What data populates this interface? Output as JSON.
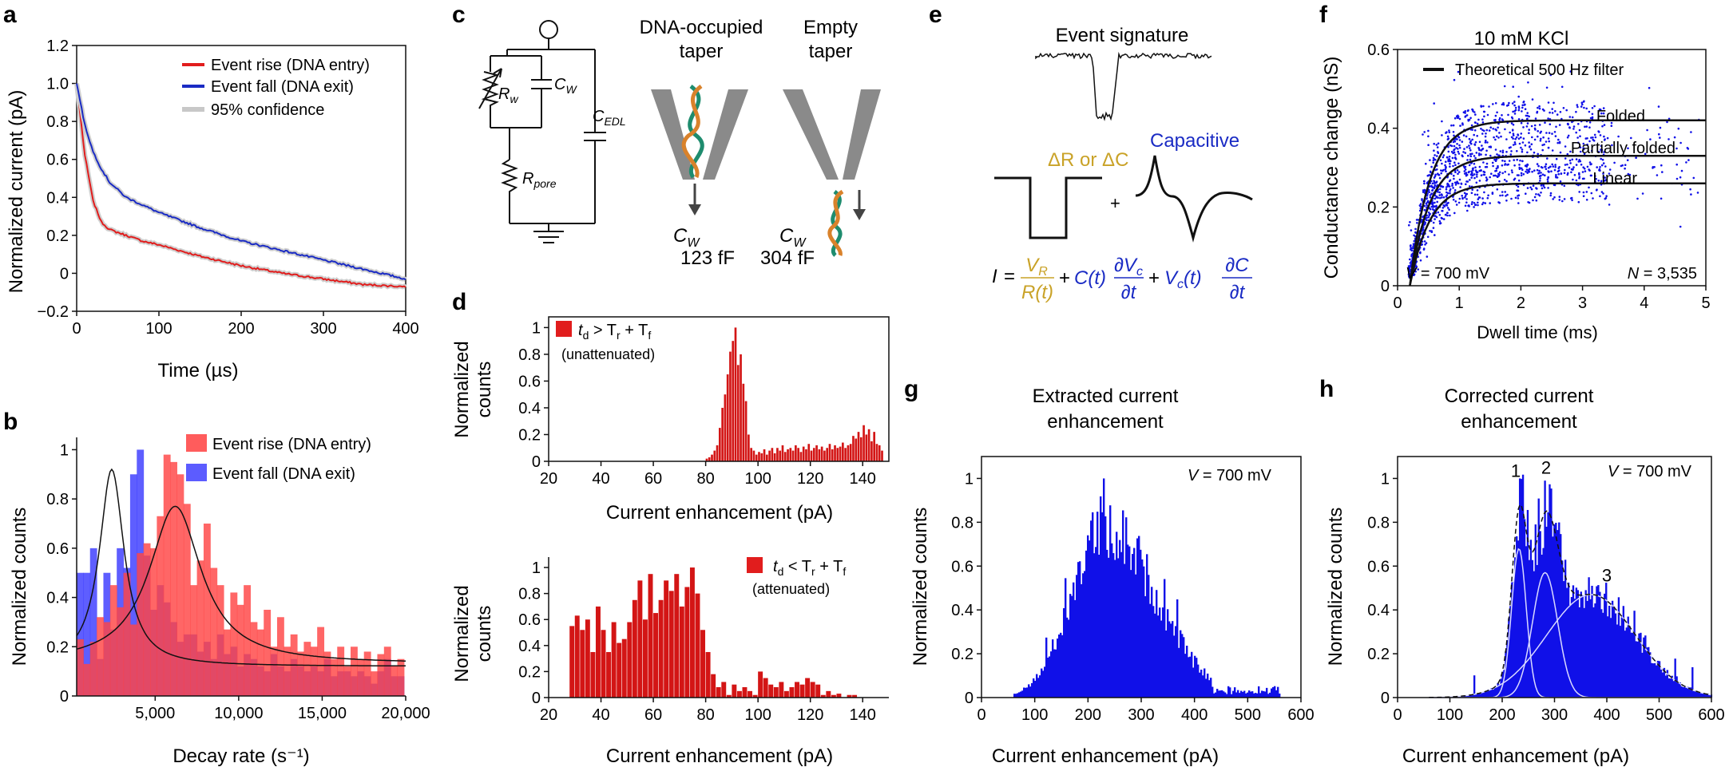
{
  "colors": {
    "red": "#e11d1d",
    "blue": "#1a2bc4",
    "hist_blue": "#1010e8",
    "hist_red": "#d31515",
    "gold": "#c9a227",
    "grey": "#8c8c8c",
    "overlap": "#b0154f"
  },
  "panels": {
    "a": {
      "letter": "a",
      "legend": [
        "Event rise (DNA entry)",
        "Event fall (DNA exit)",
        "95% confidence"
      ],
      "chart_data": {
        "type": "line",
        "xlabel": "Time (µs)",
        "ylabel": "Normalized current (pA)",
        "xlim": [
          0,
          400
        ],
        "ylim": [
          -0.2,
          1.2
        ],
        "xticks": [
          0,
          100,
          200,
          300,
          400
        ],
        "yticks": [
          -0.2,
          0,
          0.2,
          0.4,
          0.6,
          0.8,
          1.0,
          1.2
        ],
        "ytick_labels": [
          "−0.2",
          "0",
          "0.2",
          "0.4",
          "0.6",
          "0.8",
          "1.0",
          "1.2"
        ],
        "series": [
          {
            "name": "Event rise (DNA entry)",
            "x": [
              0,
              10,
              20,
              30,
              40,
              60,
              80,
              100,
              150,
              200,
              250,
              300,
              350,
              400
            ],
            "y": [
              1.0,
              0.62,
              0.38,
              0.27,
              0.23,
              0.2,
              0.17,
              0.15,
              0.09,
              0.04,
              0.0,
              -0.03,
              -0.06,
              -0.07
            ]
          },
          {
            "name": "Event fall (DNA exit)",
            "x": [
              0,
              10,
              20,
              30,
              40,
              60,
              80,
              100,
              150,
              200,
              250,
              300,
              350,
              400
            ],
            "y": [
              1.0,
              0.78,
              0.64,
              0.55,
              0.48,
              0.4,
              0.36,
              0.32,
              0.24,
              0.17,
              0.12,
              0.07,
              0.02,
              -0.03
            ]
          }
        ]
      }
    },
    "b": {
      "letter": "b",
      "legend": [
        "Event rise (DNA entry)",
        "Event fall (DNA exit)"
      ],
      "chart_data": {
        "type": "bar",
        "xlabel": "Decay rate (s⁻¹)",
        "ylabel": "Normalized counts",
        "xlim": [
          300,
          20000
        ],
        "ylim": [
          0,
          1.05
        ],
        "xticks": [
          5000,
          10000,
          15000,
          20000
        ],
        "xtick_labels": [
          "5,000",
          "10,000",
          "15,000",
          "20,000"
        ],
        "yticks": [
          0,
          0.2,
          0.4,
          0.6,
          0.8,
          1.0
        ],
        "bin_start": 300,
        "bin_width": 400,
        "series": [
          {
            "name": "Event rise (DNA entry)",
            "values": [
              0.23,
              0.13,
              0.22,
              0.32,
              0.3,
              0.45,
              0.36,
              0.5,
              0.29,
              0.58,
              0.62,
              0.6,
              0.73,
              0.98,
              0.95,
              0.9,
              0.78,
              0.45,
              0.55,
              0.7,
              0.52,
              0.45,
              0.27,
              0.42,
              0.37,
              0.45,
              0.3,
              0.27,
              0.35,
              0.2,
              0.32,
              0.2,
              0.25,
              0.18,
              0.22,
              0.2,
              0.28,
              0.18,
              0.15,
              0.2,
              0.12,
              0.2,
              0.15,
              0.18,
              0.1,
              0.17,
              0.2,
              0.12,
              0.15
            ]
          },
          {
            "name": "Event fall (DNA exit)",
            "values": [
              0.5,
              0.5,
              0.6,
              0.15,
              0.5,
              0.27,
              0.6,
              0.52,
              0.9,
              1.0,
              0.57,
              0.35,
              0.45,
              0.38,
              0.3,
              0.22,
              0.25,
              0.25,
              0.18,
              0.22,
              0.15,
              0.25,
              0.17,
              0.2,
              0.12,
              0.17,
              0.15,
              0.12,
              0.1,
              0.17,
              0.12,
              0.1,
              0.15,
              0.12,
              0.1,
              0.12,
              0.1,
              0.15,
              0.08,
              0.1,
              0.1,
              0.08,
              0.1,
              0.08,
              0.05,
              0.1,
              0.15,
              0.08,
              0.08
            ]
          }
        ],
        "fits": [
          {
            "name": "rise fit",
            "x0": 6200,
            "peak": 0.77,
            "width": 1900,
            "base": 0.13
          },
          {
            "name": "fall fit",
            "x0": 2400,
            "peak": 0.92,
            "width": 900,
            "base": 0.12
          }
        ]
      }
    },
    "c": {
      "letter": "c",
      "circuit_labels": {
        "rw": "R",
        "rw_sub": "w",
        "cw": "C",
        "cw_sub": "W",
        "cedl": "C",
        "cedl_sub": "EDL",
        "rpore": "R",
        "rpore_sub": "pore"
      },
      "occupied": {
        "title_1": "DNA-occupied",
        "title_2": "taper",
        "cap_label": "C",
        "cap_sub": "W",
        "cap_value": "123 fF"
      },
      "empty": {
        "title_1": "Empty",
        "title_2": "taper",
        "cap_label": "C",
        "cap_sub": "W",
        "cap_value": "304 fF"
      }
    },
    "d": {
      "letter": "d",
      "top": {
        "legend_main": "t",
        "legend_sub": "d",
        "legend_rel": " > T",
        "legend_r": "r",
        "legend_plus": " + T",
        "legend_f": "f",
        "legend_note": "(unattenuated)",
        "chart_data": {
          "type": "bar",
          "xlabel": "Current enhancement (pA)",
          "ylabel_1": "Normalized",
          "ylabel_2": "counts",
          "xlim": [
            20,
            150
          ],
          "ylim": [
            0,
            1.08
          ],
          "xticks": [
            20,
            40,
            60,
            80,
            100,
            120,
            140
          ],
          "yticks": [
            0,
            0.2,
            0.4,
            0.6,
            0.8,
            1.0
          ],
          "bin_start": 80,
          "bin_width": 1,
          "values": [
            0.02,
            0.03,
            0.05,
            0.08,
            0.12,
            0.25,
            0.4,
            0.5,
            0.65,
            0.82,
            0.9,
            1.0,
            0.72,
            0.8,
            0.58,
            0.45,
            0.2,
            0.1,
            0.08,
            0.05,
            0.07,
            0.06,
            0.09,
            0.05,
            0.08,
            0.1,
            0.06,
            0.1,
            0.08,
            0.12,
            0.07,
            0.09,
            0.1,
            0.08,
            0.12,
            0.1,
            0.07,
            0.11,
            0.09,
            0.13,
            0.08,
            0.1,
            0.12,
            0.09,
            0.11,
            0.08,
            0.1,
            0.13,
            0.09,
            0.12,
            0.1,
            0.11,
            0.14,
            0.1,
            0.12,
            0.13,
            0.19,
            0.17,
            0.22,
            0.18,
            0.27,
            0.2,
            0.24,
            0.15,
            0.22,
            0.13,
            0.12,
            0.08
          ]
        }
      },
      "bottom": {
        "legend_main": "t",
        "legend_sub": "d",
        "legend_rel": " < T",
        "legend_r": "r",
        "legend_plus": " + T",
        "legend_f": "f",
        "legend_note": "(attenuated)",
        "chart_data": {
          "type": "bar",
          "xlabel": "Current enhancement (pA)",
          "ylabel_1": "Normalized",
          "ylabel_2": "counts",
          "xlim": [
            20,
            150
          ],
          "ylim": [
            0,
            1.08
          ],
          "xticks": [
            20,
            40,
            60,
            80,
            100,
            120,
            140
          ],
          "yticks": [
            0,
            0.2,
            0.4,
            0.6,
            0.8,
            1.0
          ],
          "bin_start": 28,
          "bin_width": 2,
          "values": [
            0.55,
            0.63,
            0.52,
            0.6,
            0.35,
            0.7,
            0.52,
            0.35,
            0.58,
            0.42,
            0.45,
            0.58,
            0.75,
            0.9,
            0.6,
            0.95,
            0.65,
            0.75,
            0.9,
            0.82,
            0.95,
            0.7,
            0.85,
            1.0,
            0.8,
            0.52,
            0.35,
            0.18,
            0.08,
            0.12,
            0.02,
            0.1,
            0.05,
            0.08,
            0.05,
            0.02,
            0.2,
            0.15,
            0.1,
            0.08,
            0.12,
            0.05,
            0.08,
            0.12,
            0.1,
            0.15,
            0.12,
            0.1,
            0.02,
            0.05,
            0.02,
            0.03,
            0,
            0.02,
            0.02
          ]
        }
      }
    },
    "e": {
      "letter": "e",
      "signature_title": "Event signature",
      "resistive_label": "ΔR or ΔC",
      "capacitive_label": "Capacitive",
      "plus": "+",
      "equation": {
        "i": "I",
        "eq": "=",
        "vr": "V",
        "vr_sub": "R",
        "rt": "R(t)",
        "plus1": "+",
        "ct": "C(t)",
        "dvc": "∂V",
        "dvc_sub": "c",
        "dt1": "∂t",
        "plus2": "+",
        "vct": "V",
        "vct_sub": "c",
        "vct_t": "(t)",
        "dc": "∂C",
        "dt2": "∂t"
      }
    },
    "f": {
      "letter": "f",
      "title": "10 mM KCl",
      "legend": "Theoretical 500 Hz filter",
      "curve_labels": [
        "Folded",
        "Partially folded",
        "Linear"
      ],
      "voltage_label": "V",
      "voltage_value": " = 700 mV",
      "n_label": "N",
      "n_value": " = 3,535",
      "chart_data": {
        "type": "scatter",
        "xlabel": "Dwell time (ms)",
        "ylabel": "Conductance change (nS)",
        "xlim": [
          0,
          5
        ],
        "ylim": [
          0,
          0.6
        ],
        "xticks": [
          0,
          1,
          2,
          3,
          4,
          5
        ],
        "yticks": [
          0,
          0.2,
          0.4,
          0.6
        ],
        "n_points": 3535,
        "curves": [
          {
            "name": "Folded",
            "plateau": 0.42,
            "tau": 0.32,
            "x0": 0.2
          },
          {
            "name": "Partially folded",
            "plateau": 0.33,
            "tau": 0.32,
            "x0": 0.2
          },
          {
            "name": "Linear",
            "plateau": 0.26,
            "tau": 0.32,
            "x0": 0.2
          }
        ]
      }
    },
    "g": {
      "letter": "g",
      "title_1": "Extracted current",
      "title_2": "enhancement",
      "voltage_label": "V",
      "voltage_value": " = 700 mV",
      "chart_data": {
        "type": "bar",
        "xlabel": "Current enhancement (pA)",
        "ylabel": "Normalized counts",
        "xlim": [
          0,
          600
        ],
        "ylim": [
          0,
          1.1
        ],
        "xticks": [
          0,
          100,
          200,
          300,
          400,
          500,
          600
        ],
        "yticks": [
          0,
          0.2,
          0.4,
          0.6,
          0.8,
          1.0
        ],
        "bin_start": 60,
        "bin_width": 3,
        "envelope": {
          "peak_x": 230,
          "peak_y": 0.78,
          "left_width": 62,
          "right_width": 95,
          "max": 1.0
        },
        "range": [
          60,
          560
        ]
      }
    },
    "h": {
      "letter": "h",
      "title_1": "Corrected current",
      "title_2": "enhancement",
      "voltage_label": "V",
      "voltage_value": " = 700 mV",
      "peak_labels": [
        "1",
        "2",
        "3"
      ],
      "chart_data": {
        "type": "bar",
        "xlabel": "Current enhancement (pA)",
        "ylabel": "Normalized counts",
        "xlim": [
          0,
          600
        ],
        "ylim": [
          0,
          1.1
        ],
        "xticks": [
          0,
          100,
          200,
          300,
          400,
          500,
          600
        ],
        "yticks": [
          0,
          0.2,
          0.4,
          0.6,
          0.8,
          1.0
        ],
        "bin_start": 70,
        "bin_width": 3,
        "range": [
          70,
          600
        ],
        "components": [
          {
            "name": "1",
            "mu": 232,
            "sigma": 14,
            "amp": 0.68
          },
          {
            "name": "2",
            "mu": 282,
            "sigma": 24,
            "amp": 0.57
          },
          {
            "name": "3",
            "mu": 370,
            "sigma": 85,
            "amp": 0.47
          }
        ]
      }
    }
  }
}
